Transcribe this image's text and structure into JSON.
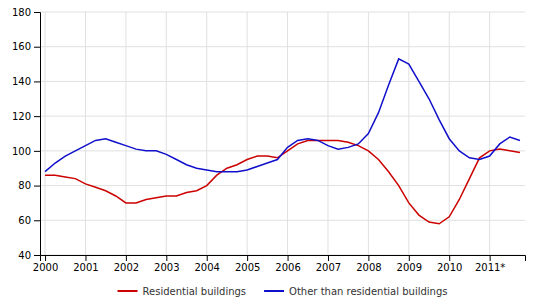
{
  "chart_data": {
    "type": "line",
    "categories": [
      "2000",
      null,
      null,
      null,
      "2001",
      null,
      null,
      null,
      "2002",
      null,
      null,
      null,
      "2003",
      null,
      null,
      null,
      "2004",
      null,
      null,
      null,
      "2005",
      null,
      null,
      null,
      "2006",
      null,
      null,
      null,
      "2007",
      null,
      null,
      null,
      "2008",
      null,
      null,
      null,
      "2009",
      null,
      null,
      null,
      "2010",
      null,
      null,
      null,
      "2011*",
      null,
      null,
      null
    ],
    "series": [
      {
        "name": "Residential buildings",
        "color": "#cc0000",
        "values": [
          86,
          86,
          85,
          84,
          81,
          79,
          77,
          74,
          70,
          70,
          72,
          73,
          74,
          74,
          76,
          77,
          80,
          86,
          90,
          92,
          95,
          97,
          97,
          96,
          100,
          104,
          106,
          106,
          106,
          106,
          105,
          103,
          100,
          95,
          88,
          80,
          70,
          63,
          59,
          58,
          62,
          72,
          84,
          96,
          100,
          101,
          100,
          99
        ]
      },
      {
        "name": "Other than residential buildings",
        "color": "#1010cc",
        "values": [
          88,
          93,
          97,
          100,
          103,
          106,
          107,
          105,
          103,
          101,
          100,
          100,
          98,
          95,
          92,
          90,
          89,
          88,
          88,
          88,
          89,
          91,
          93,
          95,
          102,
          106,
          107,
          106,
          103,
          101,
          102,
          104,
          110,
          122,
          138,
          153,
          150,
          140,
          130,
          118,
          107,
          100,
          96,
          95,
          97,
          104,
          108,
          106
        ]
      }
    ],
    "ylim": [
      40,
      180
    ],
    "yticks": [
      40,
      60,
      80,
      100,
      120,
      140,
      160,
      180
    ],
    "grid": true,
    "legend": "bottom"
  }
}
